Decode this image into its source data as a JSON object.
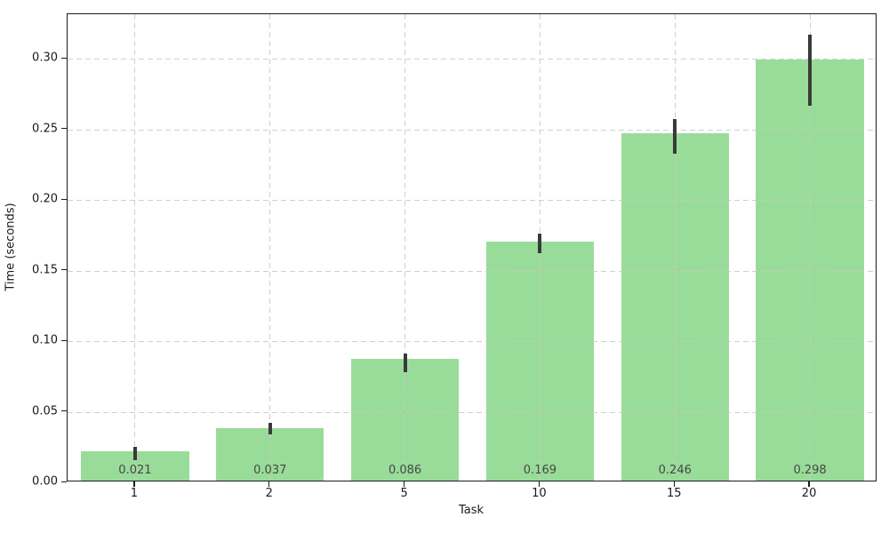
{
  "figure": {
    "background": "#ffffff"
  },
  "chart_data": {
    "type": "bar",
    "title": "",
    "xlabel": "Task",
    "ylabel": "Time (seconds)",
    "categories": [
      "1",
      "2",
      "5",
      "10",
      "15",
      "20"
    ],
    "values": [
      0.021,
      0.037,
      0.086,
      0.169,
      0.246,
      0.298
    ],
    "bar_labels": [
      "0.021",
      "0.037",
      "0.086",
      "0.169",
      "0.246",
      "0.298"
    ],
    "error_low": [
      0.016,
      0.034,
      0.078,
      0.162,
      0.233,
      0.267
    ],
    "error_high": [
      0.025,
      0.042,
      0.091,
      0.176,
      0.257,
      0.317
    ],
    "ylim": [
      0,
      0.3315
    ],
    "yticks": [
      0.0,
      0.05,
      0.1,
      0.15,
      0.2,
      0.25,
      0.3
    ],
    "ytick_labels": [
      "0.00",
      "0.05",
      "0.10",
      "0.15",
      "0.20",
      "0.25",
      "0.30"
    ],
    "grid": "both-dashed-above-bars",
    "legend": "none",
    "bar_width_fraction": 0.8,
    "colors": {
      "bar_fill": "#99dc99",
      "error_bar": "#3a3a3a",
      "bar_value_label": "#474747",
      "grid_line": "#c8c8c8",
      "axis_text": "#1a1a1a",
      "spine": "#1c1c1c"
    }
  }
}
